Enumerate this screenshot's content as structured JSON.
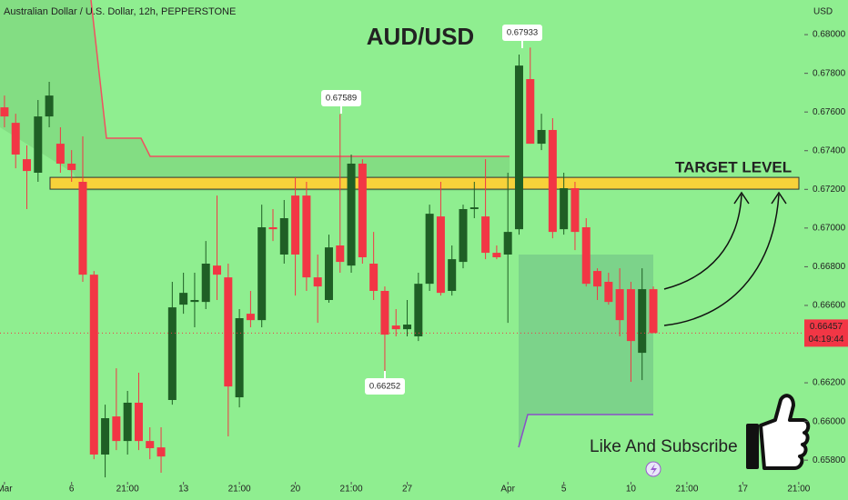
{
  "chart_data": {
    "type": "candlestick",
    "header": "Australian Dollar / U.S. Dollar, 12h, PEPPERSTONE",
    "title": "AUD/USD",
    "y_axis_label": "USD",
    "up_color": "#1f5f25",
    "down_color": "#f23645",
    "open": [
      0.67624,
      0.67544,
      0.67356,
      0.67286,
      0.67577,
      0.67436,
      0.67333,
      0.67239,
      0.66759,
      0.65829,
      0.66026,
      0.65899,
      0.66097,
      0.65899,
      0.65866,
      0.66111,
      0.66604,
      0.66618,
      0.66618,
      0.66806,
      0.66745,
      0.66125,
      0.66557,
      0.66524,
      0.67004,
      0.66863,
      0.67168,
      0.67168,
      0.66745,
      0.66628,
      0.6691,
      0.66806,
      0.67333,
      0.66816,
      0.66675,
      0.66496,
      0.66477,
      0.6644,
      0.66712,
      0.6706,
      0.66675,
      0.66825,
      0.67098,
      0.6706,
      0.66872,
      0.66863,
      0.66994,
      0.6777,
      0.67436,
      0.67507,
      0.66994,
      0.67206,
      0.67004,
      0.66778,
      0.66722,
      0.66684,
      0.66684,
      0.66355,
      0.66684
    ],
    "high": [
      0.67685,
      0.67591,
      0.67427,
      0.67662,
      0.67756,
      0.67521,
      0.67403,
      0.67474,
      0.66778,
      0.66087,
      0.66275,
      0.66158,
      0.66252,
      0.6597,
      0.6597,
      0.66722,
      0.66769,
      0.66769,
      0.66933,
      0.67168,
      0.66816,
      0.66581,
      0.66675,
      0.67121,
      0.67098,
      0.67145,
      0.67262,
      0.67239,
      0.66863,
      0.66966,
      0.67589,
      0.6738,
      0.67356,
      0.6698,
      0.66698,
      0.66581,
      0.66628,
      0.66769,
      0.67121,
      0.67239,
      0.6691,
      0.67121,
      0.67239,
      0.67356,
      0.6691,
      0.67286,
      0.67897,
      0.67933,
      0.67591,
      0.67568,
      0.67286,
      0.67239,
      0.67051,
      0.66792,
      0.66769,
      0.66792,
      0.66722,
      0.66792,
      0.66698
    ],
    "low": [
      0.67521,
      0.67309,
      0.67098,
      0.67239,
      0.67521,
      0.67286,
      0.67239,
      0.66722,
      0.65805,
      0.65711,
      0.65852,
      0.65829,
      0.65852,
      0.65805,
      0.65735,
      0.66087,
      0.66557,
      0.66487,
      0.66581,
      0.66628,
      0.65923,
      0.66073,
      0.66487,
      0.66487,
      0.66933,
      0.66816,
      0.66651,
      0.66675,
      0.6651,
      0.66614,
      0.66769,
      0.66769,
      0.66816,
      0.66628,
      0.66252,
      0.6644,
      0.6644,
      0.66416,
      0.66675,
      0.66651,
      0.66651,
      0.66792,
      0.67051,
      0.66839,
      0.66839,
      0.6651,
      0.66966,
      0.67436,
      0.67403,
      0.66947,
      0.66966,
      0.66886,
      0.66698,
      0.66628,
      0.66604,
      0.6644,
      0.66205,
      0.66214,
      0.66457
    ],
    "close": [
      0.67577,
      0.6738,
      0.67295,
      0.67577,
      0.67685,
      0.67333,
      0.673,
      0.66759,
      0.65829,
      0.66017,
      0.65899,
      0.66097,
      0.65899,
      0.65862,
      0.65819,
      0.6659,
      0.66665,
      0.66628,
      0.66816,
      0.66759,
      0.66181,
      0.66534,
      0.66524,
      0.67004,
      0.66994,
      0.67051,
      0.66863,
      0.66745,
      0.66698,
      0.669,
      0.66825,
      0.67333,
      0.66849,
      0.66675,
      0.66449,
      0.66477,
      0.66501,
      0.66712,
      0.67074,
      0.66665,
      0.66839,
      0.67098,
      0.67107,
      0.66872,
      0.66849,
      0.6698,
      0.6784,
      0.67436,
      0.67507,
      0.6698,
      0.67206,
      0.6698,
      0.66712,
      0.66698,
      0.66618,
      0.66524,
      0.66416,
      0.66684,
      0.66457
    ],
    "xlim": [
      -0.4,
      71.5
    ],
    "xticks": [
      {
        "value": 0,
        "label": "Mar"
      },
      {
        "value": 6,
        "label": "6"
      },
      {
        "value": 11,
        "label": "21:00"
      },
      {
        "value": 16,
        "label": "13"
      },
      {
        "value": 21,
        "label": "21:00"
      },
      {
        "value": 26,
        "label": "20"
      },
      {
        "value": 31,
        "label": "21:00"
      },
      {
        "value": 36,
        "label": "27"
      },
      {
        "value": 45,
        "label": "Apr"
      },
      {
        "value": 50,
        "label": "5"
      },
      {
        "value": 56,
        "label": "10"
      },
      {
        "value": 61,
        "label": "21:00"
      },
      {
        "value": 66,
        "label": "17"
      },
      {
        "value": 71,
        "label": "21:00"
      }
    ],
    "ylim": [
      0.65688,
      0.68179
    ],
    "yticks": [
      {
        "value": 0.658,
        "label": "0.65800"
      },
      {
        "value": 0.66,
        "label": "0.66000"
      },
      {
        "value": 0.662,
        "label": "0.66200"
      },
      {
        "value": 0.664,
        "label": "0.66400"
      },
      {
        "value": 0.666,
        "label": "0.66600"
      },
      {
        "value": 0.668,
        "label": "0.66800"
      },
      {
        "value": 0.67,
        "label": "0.67000"
      },
      {
        "value": 0.672,
        "label": "0.67200"
      },
      {
        "value": 0.674,
        "label": "0.67400"
      },
      {
        "value": 0.676,
        "label": "0.67600"
      },
      {
        "value": 0.678,
        "label": "0.67800"
      },
      {
        "value": 0.68,
        "label": "0.68000"
      }
    ],
    "annotations": [
      "0.67589",
      "0.67933",
      "0.66252"
    ],
    "countdown": "04:19:44",
    "target_zone": [
      0.67262,
      0.67201
    ],
    "target_label": "TARGET LEVEL",
    "cta": "Like And Subscribe"
  }
}
